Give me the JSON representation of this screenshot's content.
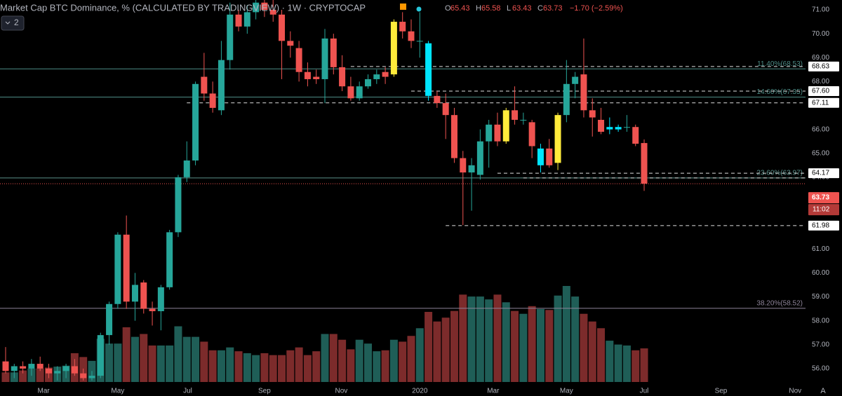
{
  "chart_data": {
    "type": "candlestick",
    "title": "Market Cap BTC Dominance, % (CALCULATED BY TRADINGVIEW) · 1W · CRYPTOCAP",
    "ohlc_legend": [
      {
        "key": "O",
        "value": 65.43
      },
      {
        "key": "H",
        "value": 65.58
      },
      {
        "key": "L",
        "value": 63.43
      },
      {
        "key": "C",
        "value": 63.73
      }
    ],
    "change": "−1.70 (−2.59%)",
    "indicator_count": "2",
    "auto_button": "A",
    "colors": {
      "up": "#26a69a",
      "down": "#ef5350",
      "volume_up": "#1f5e57",
      "volume_down": "#7c2b2b"
    },
    "open": [
      56.3,
      55.9,
      56.1,
      56.0,
      56.2,
      56.0,
      55.8,
      55.9,
      56.1,
      55.8,
      55.6,
      55.7,
      57.4,
      58.7,
      61.6,
      58.8,
      59.6,
      58.5,
      58.4,
      59.4,
      61.7,
      64.0,
      64.7,
      68.2,
      67.5,
      66.8,
      68.9,
      70.8,
      70.3,
      70.9,
      71.3,
      71.0,
      70.8,
      69.7,
      69.4,
      68.4,
      68.2,
      68.1,
      69.8,
      68.6,
      67.8,
      67.3,
      67.8,
      68.1,
      68.4,
      68.3,
      70.5,
      70.1,
      69.7,
      69.6,
      67.4,
      67.1,
      66.6,
      64.8,
      64.2,
      64.1,
      65.5,
      66.2,
      65.5,
      66.8,
      66.4,
      66.3,
      64.5,
      65.2,
      64.6,
      66.6,
      67.9,
      68.3,
      66.8,
      66.4,
      66.0,
      66.0,
      66.1,
      66.1,
      65.43
    ],
    "high": [
      56.9,
      56.2,
      56.3,
      56.4,
      56.5,
      56.2,
      56.1,
      56.2,
      56.4,
      56.0,
      55.9,
      57.5,
      58.8,
      61.7,
      62.4,
      60.0,
      59.7,
      58.8,
      59.5,
      61.8,
      64.1,
      65.5,
      68.0,
      69.2,
      68.0,
      69.7,
      71.3,
      71.0,
      71.2,
      71.6,
      71.6,
      71.5,
      71.0,
      70.1,
      69.7,
      68.8,
      68.5,
      70.2,
      70.0,
      69.1,
      68.2,
      68.0,
      68.3,
      68.5,
      68.6,
      70.6,
      70.9,
      70.6,
      70.9,
      69.7,
      67.6,
      67.5,
      66.9,
      65.1,
      64.8,
      66.0,
      66.4,
      66.7,
      66.9,
      67.8,
      66.7,
      66.4,
      65.4,
      65.6,
      66.7,
      68.9,
      68.4,
      69.8,
      67.3,
      66.9,
      66.5,
      66.2,
      66.6,
      66.2,
      65.58
    ],
    "low": [
      55.8,
      55.6,
      55.8,
      55.7,
      55.9,
      55.6,
      55.5,
      55.6,
      55.7,
      55.5,
      55.5,
      55.6,
      57.0,
      58.5,
      58.5,
      58.0,
      58.3,
      57.8,
      57.6,
      59.3,
      61.5,
      63.8,
      64.5,
      67.2,
      66.7,
      66.6,
      68.5,
      70.1,
      70.0,
      70.6,
      70.7,
      70.5,
      68.1,
      69.0,
      68.0,
      67.8,
      67.9,
      67.1,
      68.3,
      67.6,
      67.2,
      67.2,
      67.7,
      67.9,
      67.9,
      68.2,
      69.8,
      69.4,
      69.0,
      67.2,
      66.9,
      65.6,
      64.6,
      62.0,
      62.6,
      63.9,
      64.4,
      65.3,
      65.4,
      66.2,
      66.2,
      64.8,
      64.2,
      64.4,
      64.3,
      66.3,
      67.3,
      66.5,
      65.7,
      65.8,
      65.8,
      65.9,
      65.9,
      65.3,
      63.43
    ],
    "close": [
      55.9,
      56.1,
      56.0,
      56.2,
      56.0,
      55.8,
      55.9,
      56.1,
      55.8,
      55.6,
      55.7,
      57.4,
      58.7,
      61.6,
      58.8,
      59.5,
      58.5,
      58.4,
      59.4,
      61.7,
      64.0,
      64.7,
      67.9,
      67.5,
      66.9,
      68.9,
      70.8,
      70.3,
      70.9,
      71.3,
      71.0,
      70.8,
      69.7,
      69.5,
      68.4,
      68.1,
      68.1,
      69.8,
      68.6,
      67.8,
      67.3,
      67.8,
      68.1,
      68.3,
      68.2,
      70.5,
      70.1,
      69.7,
      69.7,
      67.4,
      67.1,
      66.6,
      64.8,
      64.2,
      64.5,
      65.5,
      66.2,
      65.5,
      66.8,
      66.4,
      66.4,
      65.3,
      65.2,
      64.5,
      66.6,
      67.9,
      68.2,
      66.8,
      66.5,
      65.9,
      66.1,
      66.1,
      66.1,
      65.4,
      63.73
    ],
    "bar_colors": [
      null,
      null,
      null,
      null,
      null,
      null,
      null,
      null,
      null,
      null,
      null,
      null,
      null,
      null,
      null,
      null,
      null,
      null,
      null,
      null,
      null,
      null,
      null,
      null,
      null,
      null,
      null,
      null,
      null,
      null,
      null,
      null,
      null,
      null,
      null,
      null,
      null,
      null,
      null,
      null,
      null,
      null,
      null,
      null,
      null,
      "#ffeb3b",
      null,
      null,
      null,
      "#00e5ff",
      null,
      null,
      null,
      null,
      null,
      null,
      null,
      null,
      "#ffeb3b",
      null,
      null,
      null,
      "#00e5ff",
      null,
      "#ffeb3b",
      null,
      null,
      null,
      null,
      null,
      "#00e5ff",
      "#00e5ff",
      null,
      null,
      null
    ],
    "volume": [
      10,
      10,
      12,
      14,
      14,
      15,
      16,
      17,
      30,
      26,
      22,
      45,
      40,
      40,
      57,
      47,
      50,
      38,
      38,
      38,
      58,
      47,
      47,
      42,
      33,
      33,
      36,
      32,
      30,
      28,
      30,
      28,
      28,
      33,
      36,
      28,
      32,
      50,
      50,
      44,
      34,
      44,
      40,
      32,
      33,
      44,
      42,
      48,
      56,
      73,
      63,
      67,
      74,
      91,
      89,
      89,
      86,
      91,
      83,
      74,
      71,
      79,
      76,
      75,
      90,
      100,
      89,
      71,
      63,
      56,
      43,
      39,
      38,
      33,
      35
    ],
    "volume_lim": [
      0,
      100
    ],
    "xlim": [
      -0.65,
      92.7
    ],
    "xticks": [
      {
        "value": 4.4,
        "label": "Mar"
      },
      {
        "value": 13.0,
        "label": "May"
      },
      {
        "value": 21.1,
        "label": "Jul"
      },
      {
        "value": 30.0,
        "label": "Sep"
      },
      {
        "value": 38.9,
        "label": "Nov"
      },
      {
        "value": 48.0,
        "label": "2020"
      },
      {
        "value": 56.5,
        "label": "Mar"
      },
      {
        "value": 65.0,
        "label": "May"
      },
      {
        "value": 74.0,
        "label": "Jul"
      },
      {
        "value": 82.9,
        "label": "Sep"
      },
      {
        "value": 91.5,
        "label": "Nov"
      }
    ],
    "ylim": [
      55.44,
      71.41
    ],
    "yticks": [
      {
        "value": 56,
        "label": "56.00"
      },
      {
        "value": 57,
        "label": "57.00"
      },
      {
        "value": 58,
        "label": "58.00"
      },
      {
        "value": 59,
        "label": "59.00"
      },
      {
        "value": 60,
        "label": "60.00"
      },
      {
        "value": 61,
        "label": "61.00"
      },
      {
        "value": 62,
        "label": "62.00"
      },
      {
        "value": 63,
        "label": "63.00"
      },
      {
        "value": 64,
        "label": "64.00"
      },
      {
        "value": 65,
        "label": "65.00"
      },
      {
        "value": 66,
        "label": "66.00"
      },
      {
        "value": 67,
        "label": "67.00"
      },
      {
        "value": 68,
        "label": "68.00"
      },
      {
        "value": 69,
        "label": "69.00"
      },
      {
        "value": 70,
        "label": "70.00"
      },
      {
        "value": 71,
        "label": "71.00"
      }
    ],
    "grid": false,
    "levels": [
      {
        "value": 68.63,
        "from": 40
      },
      {
        "value": 67.6,
        "from": 47
      },
      {
        "value": 67.11,
        "from": 21
      },
      {
        "value": 64.17,
        "from": 57
      },
      {
        "value": 63.97,
        "from": 60
      },
      {
        "value": 61.98,
        "from": 51
      }
    ],
    "fib_levels": [
      {
        "value": 68.53,
        "label": "11.40%(68.53)",
        "color": "#4d8c86"
      },
      {
        "value": 67.35,
        "label": "14.60%(67.35)",
        "color": "#4d8c86"
      },
      {
        "value": 63.97,
        "label": "23.60%(63.97)",
        "color": "#5a8f8a"
      },
      {
        "value": 58.52,
        "label": "38.20%(58.52)",
        "color": "#8e8499"
      }
    ],
    "level_labels": [
      {
        "value": 68.63,
        "label": "68.63"
      },
      {
        "value": 67.6,
        "label": "67.60"
      },
      {
        "value": 67.11,
        "label": "67.11"
      },
      {
        "value": 64.17,
        "label": "64.17"
      },
      {
        "value": 61.98,
        "label": "61.98"
      }
    ],
    "last_price": {
      "value": 63.73,
      "label": "63.73"
    },
    "countdown": "11:02"
  }
}
